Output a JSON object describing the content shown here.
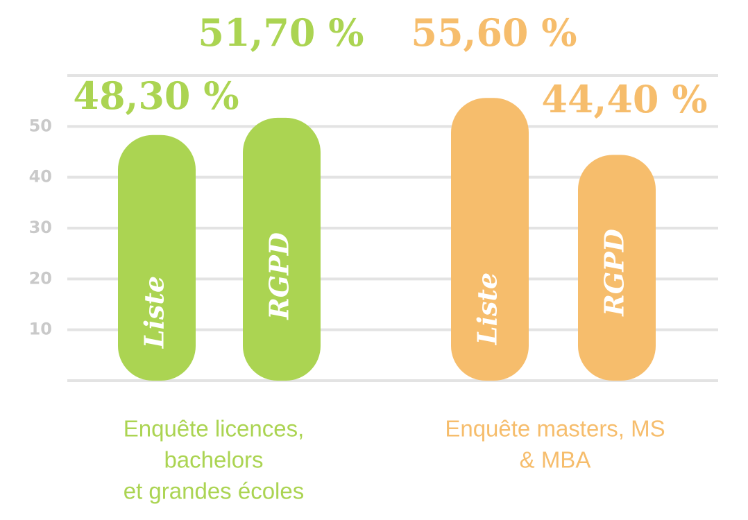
{
  "chart_data": {
    "type": "bar",
    "categories": [
      [
        "Enquête licences,",
        "bachelors",
        "et grandes écoles"
      ],
      [
        "Enquête masters, MS",
        "& MBA"
      ]
    ],
    "colors": [
      "#abd452",
      "#f6bd6c"
    ],
    "series": [
      {
        "name": "Liste",
        "values": [
          48.3,
          55.6
        ],
        "value_labels": [
          "48,30 %",
          "55,60 %"
        ]
      },
      {
        "name": "RGPD",
        "values": [
          51.7,
          44.4
        ],
        "value_labels": [
          "51,70 %",
          "44,40 %"
        ]
      }
    ],
    "ylim": [
      0,
      60
    ],
    "yticks": [
      10,
      20,
      30,
      40,
      50
    ],
    "grid": true
  }
}
